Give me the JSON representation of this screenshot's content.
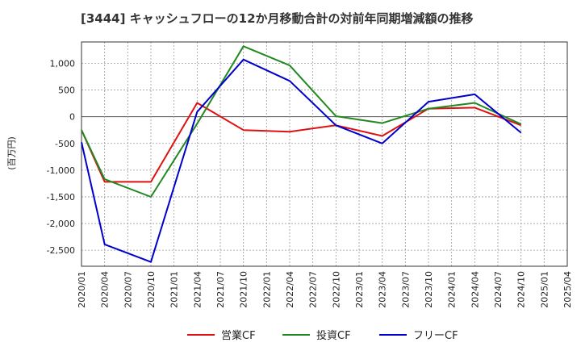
{
  "chart_data": {
    "type": "line",
    "title": "[3444]  キャッシュフローの12か月移動合計の対前年同期増減額の推移",
    "ylabel": "(百万円)",
    "xlabel": "",
    "ylim": [
      -2800,
      1400
    ],
    "yticks": [
      1000,
      500,
      0,
      -500,
      -1000,
      -1500,
      -2000,
      -2500
    ],
    "ytick_labels": [
      "1,000",
      "500",
      "0",
      "-500",
      "-1,000",
      "-1,500",
      "-2,000",
      "-2,500"
    ],
    "xticks": [
      "2020/01",
      "2020/04",
      "2020/07",
      "2020/10",
      "2021/01",
      "2021/04",
      "2021/07",
      "2021/10",
      "2022/01",
      "2022/04",
      "2022/07",
      "2022/10",
      "2023/01",
      "2023/04",
      "2023/07",
      "2023/10",
      "2024/01",
      "2024/04",
      "2024/07",
      "2024/10",
      "2025/01",
      "2025/04"
    ],
    "grid": true,
    "legend_position": "bottom",
    "series": [
      {
        "name": "営業CF",
        "color": "#dd1111",
        "points": [
          [
            0,
            -250
          ],
          [
            1,
            -1220
          ],
          [
            3,
            -1220
          ],
          [
            5,
            260
          ],
          [
            7,
            -250
          ],
          [
            9,
            -280
          ],
          [
            11,
            -160
          ],
          [
            13,
            -360
          ],
          [
            15,
            150
          ],
          [
            17,
            170
          ],
          [
            19,
            -160
          ]
        ]
      },
      {
        "name": "投資CF",
        "color": "#228822",
        "points": [
          [
            0,
            -250
          ],
          [
            1,
            -1170
          ],
          [
            3,
            -1500
          ],
          [
            5,
            -130
          ],
          [
            7,
            1320
          ],
          [
            9,
            960
          ],
          [
            11,
            10
          ],
          [
            13,
            -120
          ],
          [
            15,
            150
          ],
          [
            17,
            260
          ],
          [
            19,
            -140
          ]
        ]
      },
      {
        "name": "フリーCF",
        "color": "#0000cc",
        "points": [
          [
            0,
            -480
          ],
          [
            1,
            -2390
          ],
          [
            3,
            -2720
          ],
          [
            5,
            90
          ],
          [
            7,
            1070
          ],
          [
            9,
            670
          ],
          [
            11,
            -160
          ],
          [
            13,
            -500
          ],
          [
            15,
            280
          ],
          [
            17,
            420
          ],
          [
            19,
            -300
          ]
        ]
      }
    ]
  }
}
